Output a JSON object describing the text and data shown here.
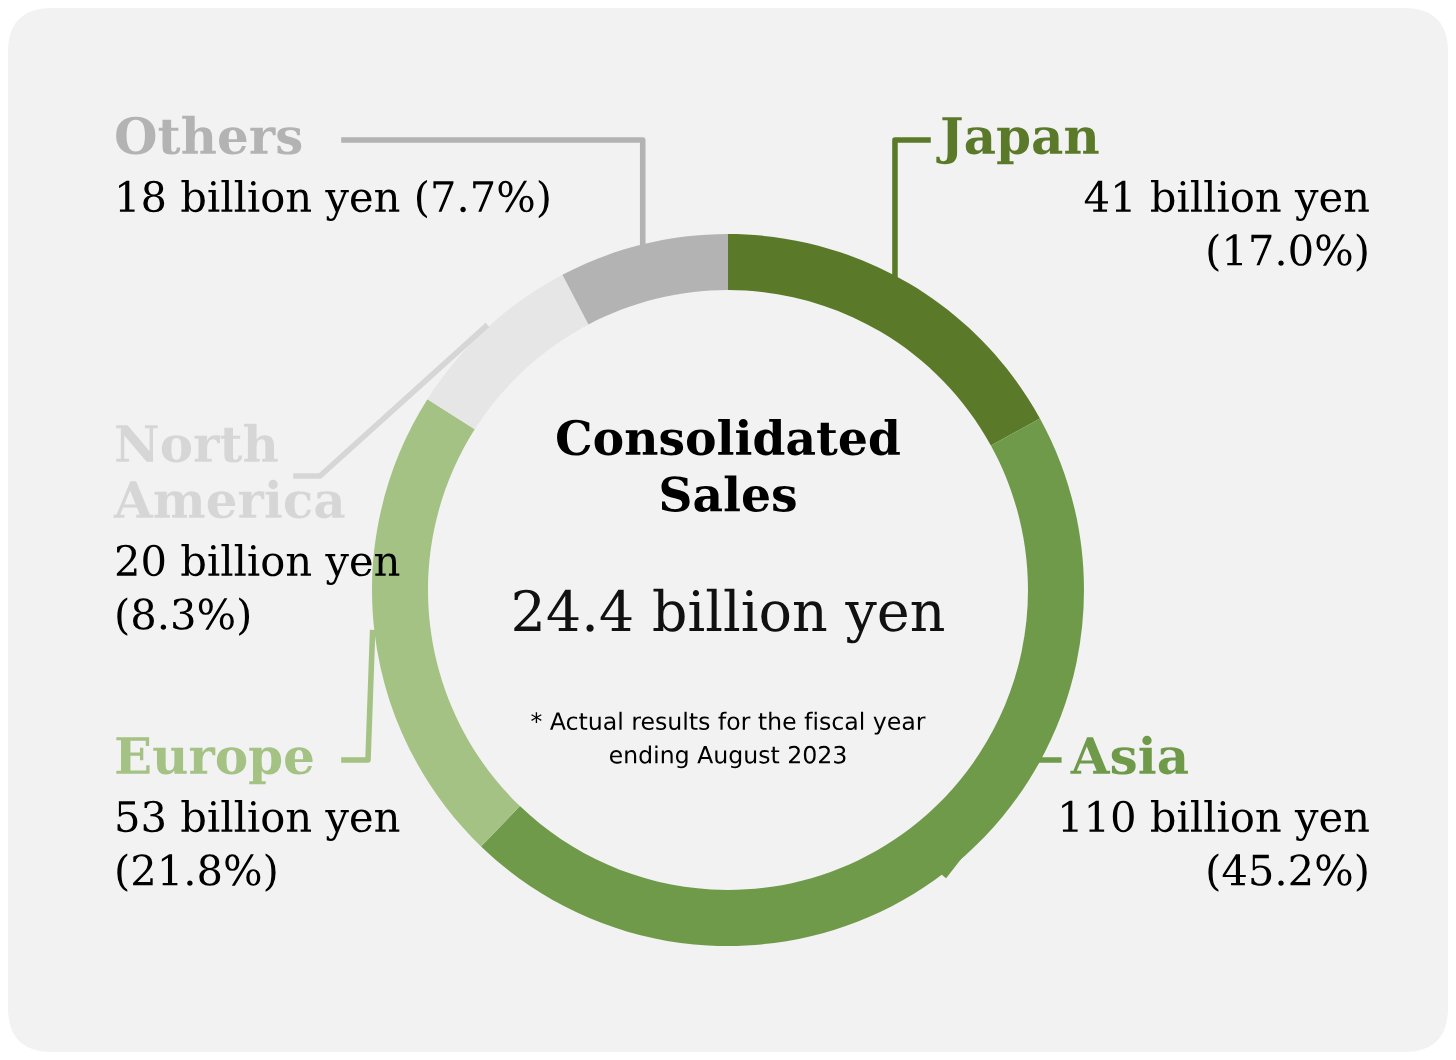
{
  "chart_data": {
    "type": "donut",
    "title": "Consolidated\nSales",
    "subtitle": "24.4 billion yen",
    "annotations": [
      "* Actual results for the fiscal year\nending August 2023"
    ],
    "categories": [
      "Japan",
      "Asia",
      "Europe",
      "North\nAmerica",
      "Others"
    ],
    "values": [
      17.0,
      45.2,
      21.8,
      8.3,
      7.7
    ],
    "colors": [
      "#5a7a2a",
      "#6f9a4a",
      "#a3c283",
      "#e6e6e6",
      "#b3b3b3"
    ],
    "value_labels": [
      "41 billion yen\n(17.0%)",
      "110 billion yen\n(45.2%)",
      "53 billion yen\n(21.8%)",
      "20 billion yen\n(8.3%)",
      "18 billion yen (7.7%)"
    ],
    "legend": false
  }
}
